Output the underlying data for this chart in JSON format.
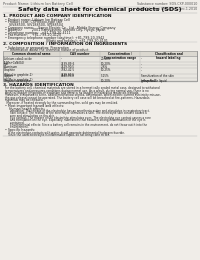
{
  "bg_color": "#f0ede8",
  "header_top_left": "Product Name: Lithium Ion Battery Cell",
  "header_top_right": "Substance number: SDS-CXP-000010\nEstablishment / Revision: Dec.1.2010",
  "title": "Safety data sheet for chemical products (SDS)",
  "section1_title": "1. PRODUCT AND COMPANY IDENTIFICATION",
  "section1_lines": [
    "  • Product name: Lithium Ion Battery Cell",
    "  • Product code: CXP88xxx-type (all)",
    "      SIV88500, SIV188500, SIV88504",
    "  • Company name:    Sanyo Electric Co., Ltd., Mobile Energy Company",
    "  • Address:          2001 Kamiyashiro, Sumoto City, Hyogo, Japan",
    "  • Telephone number:   +81-799-20-4111",
    "  • Fax number:    +81-799-20-4120",
    "  • Emergency telephone number (daytime): +81-799-20-3942",
    "                                           (Night and holiday): +81-799-20-4101"
  ],
  "section2_title": "2. COMPOSITION / INFORMATION ON INGREDIENTS",
  "section2_sub": "  • Substance or preparation: Preparation",
  "section2_sub2": "    • Information about the chemical nature of product:",
  "table_headers": [
    "Common chemical name",
    "CAS number",
    "Concentration /\nConcentration range",
    "Classification and\nhazard labeling"
  ],
  "table_rows": [
    [
      "Lithium cobalt oxide\n(LiMn+CoNiO4)",
      "-",
      "20-60%",
      "-"
    ],
    [
      "Iron",
      "7439-89-6",
      "10-20%",
      "-"
    ],
    [
      "Aluminum",
      "7429-90-5",
      "2-6%",
      "-"
    ],
    [
      "Graphite\n(Metal in graphite-1)\n(Al/Mn in graphite-1)",
      "7782-42-5\n7429-90-5",
      "10-25%",
      "-"
    ],
    [
      "Copper",
      "7440-50-8",
      "5-15%",
      "Sensitization of the skin\ngroup No.2"
    ],
    [
      "Organic electrolyte",
      "-",
      "10-20%",
      "Inflammable liquid"
    ]
  ],
  "section3_title": "3. HAZARDS IDENTIFICATION",
  "section3_lines": [
    "  For the battery cell, chemical materials are stored in a hermetically sealed metal case, designed to withstand",
    "  temperatures and pressures-conditions during normal use. As a result, during normal use, there is no",
    "  physical danger of ignition or explosion and there is no danger of hazardous materials leakage.",
    "   However, if exposed to a fire, added mechanical shocks, decompose, when electric current electricity misuse,",
    "  the gas release cannot be operated. The battery cell case will be breached at fire-patterns. Hazardous",
    "  materials may be released.",
    "    Moreover, if heated strongly by the surrounding fire, solid gas may be emitted."
  ],
  "section3_important": "  • Most important hazard and effects:",
  "section3_human": "      Human health effects:",
  "section3_human_lines": [
    "        Inhalation: The release of the electrolyte has an anesthesia action and stimulates in respiratory tract.",
    "        Skin contact: The release of the electrolyte stimulates a skin. The electrolyte skin contact causes a",
    "        sore and stimulation on the skin.",
    "        Eye contact: The release of the electrolyte stimulates eyes. The electrolyte eye contact causes a sore",
    "        and stimulation on the eye. Especially, substances that causes a strong inflammation of the eye is",
    "        contained.",
    "        Environmental effects: Since a battery cell remains in the environment, do not throw out it into the",
    "        environment."
  ],
  "section3_specific": "  • Specific hazards:",
  "section3_specific_lines": [
    "      If the electrolyte contacts with water, it will generate detrimental hydrogen fluoride.",
    "      Since the used electrolyte is inflammable liquid, do not bring close to fire."
  ]
}
